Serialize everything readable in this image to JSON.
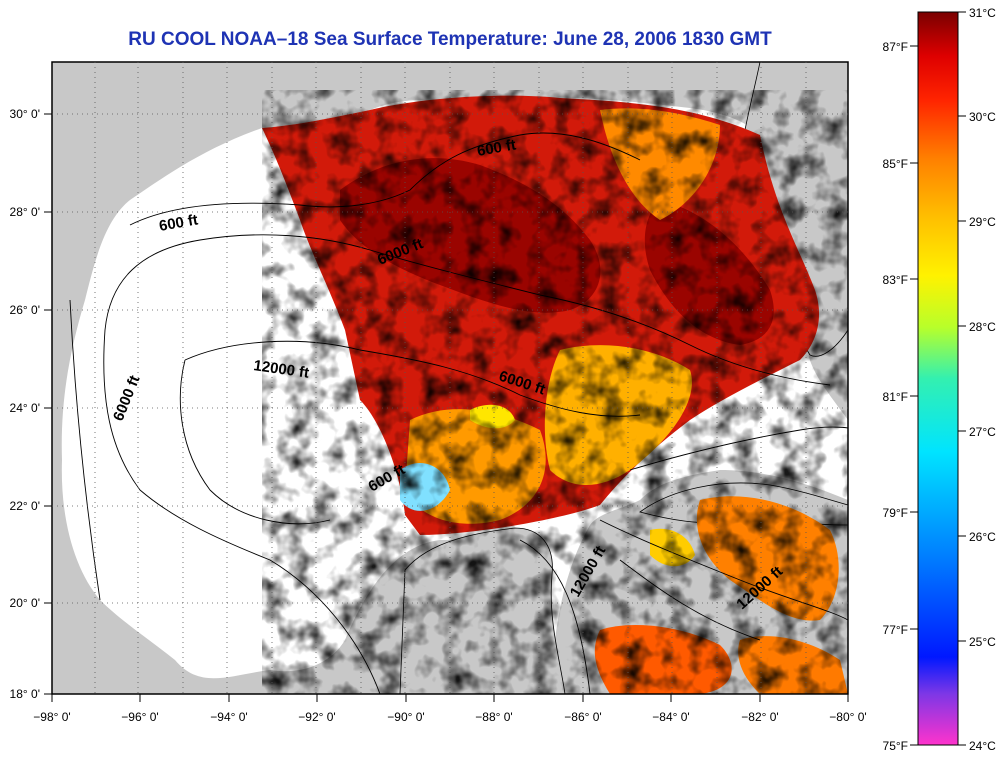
{
  "title": "RU COOL  NOAA–18  Sea Surface Temperature:  June 28, 2006 1830 GMT",
  "lon_ticks": [
    "−98° 0'",
    "−96° 0'",
    "−94° 0'",
    "−92° 0'",
    "−90° 0'",
    "−88° 0'",
    "−86° 0'",
    "−84° 0'",
    "−82° 0'",
    "−80° 0'"
  ],
  "lat_ticks": [
    "30° 0'",
    "28° 0'",
    "26° 0'",
    "24° 0'",
    "22° 0'",
    "20° 0'",
    "18° 0'"
  ],
  "map_extent": {
    "lon": [
      -98,
      -80
    ],
    "lat": [
      18,
      31
    ]
  },
  "depth_contour_labels": [
    "600 ft",
    "600 ft",
    "6000 ft",
    "12000 ft",
    "6000 ft",
    "6000 ft",
    "600 ft",
    "12000 ft",
    "12000 ft"
  ],
  "colorbar": {
    "celsius_labels": [
      "31°C",
      "30°C",
      "29°C",
      "28°C",
      "27°C",
      "26°C",
      "25°C",
      "24°C"
    ],
    "fahrenheit_labels": [
      "87°F",
      "85°F",
      "83°F",
      "81°F",
      "79°F",
      "77°F",
      "75°F"
    ],
    "range_c": [
      24,
      31
    ],
    "colors": [
      "#ff33cc",
      "#7d37e6",
      "#0018ff",
      "#0080ff",
      "#00e4ff",
      "#33f0b0",
      "#b8ff2a",
      "#fff200",
      "#ffbf00",
      "#ff8000",
      "#ff2400",
      "#de0000",
      "#7a0000"
    ]
  },
  "colors": {
    "land": "#c8c8c8",
    "cloud_or_nodata": "#ffffff",
    "title_color": "#1e33b4"
  }
}
